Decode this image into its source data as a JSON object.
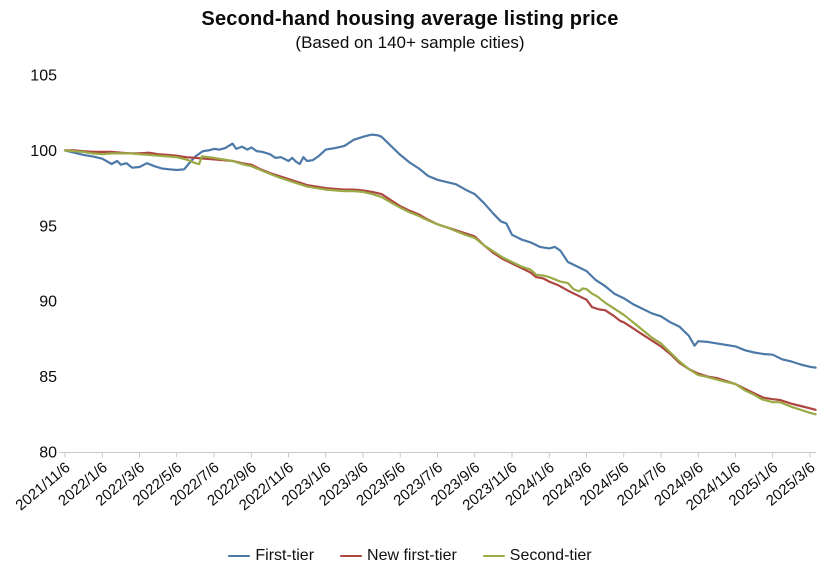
{
  "title": "Second-hand housing average listing price",
  "subtitle": "(Based on 140+ sample cities)",
  "colors": {
    "axis_line": "#c9c9c9",
    "tick_text": "#0b0b0b",
    "first_tier": "#4d79a8",
    "new_first_tier": "#ad4540",
    "second_tier": "#9aaa45"
  },
  "chart_data": {
    "type": "line",
    "title": "Second-hand housing average listing price",
    "subtitle": "(Based on 140+ sample cities)",
    "xlabel": "",
    "ylabel": "",
    "ylim": [
      80,
      105
    ],
    "y_ticks": [
      80,
      85,
      90,
      95,
      100,
      105
    ],
    "grid": false,
    "legend_position": "bottom",
    "x_tick_labels": [
      "2021/11/6",
      "2022/1/6",
      "2022/3/6",
      "2022/5/6",
      "2022/7/6",
      "2022/9/6",
      "2022/11/6",
      "2023/1/6",
      "2023/3/6",
      "2023/5/6",
      "2023/7/6",
      "2023/9/6",
      "2023/11/6",
      "2024/1/6",
      "2024/3/6",
      "2024/5/6",
      "2024/7/6",
      "2024/9/6",
      "2024/11/6",
      "2025/1/6",
      "2025/3/6"
    ],
    "x_months_per_tick": 2,
    "x_max_month": 40.3,
    "series": [
      {
        "name": "First-tier",
        "color": "#4d79a8",
        "points": [
          [
            0,
            100
          ],
          [
            0.5,
            99.85
          ],
          [
            1,
            99.7
          ],
          [
            1.5,
            99.6
          ],
          [
            2,
            99.45
          ],
          [
            2.5,
            99.1
          ],
          [
            2.8,
            99.3
          ],
          [
            3,
            99.05
          ],
          [
            3.3,
            99.15
          ],
          [
            3.6,
            98.85
          ],
          [
            4,
            98.9
          ],
          [
            4.4,
            99.15
          ],
          [
            4.8,
            98.95
          ],
          [
            5.2,
            98.8
          ],
          [
            5.6,
            98.75
          ],
          [
            6,
            98.7
          ],
          [
            6.4,
            98.75
          ],
          [
            6.7,
            99.2
          ],
          [
            7,
            99.6
          ],
          [
            7.4,
            99.95
          ],
          [
            7.7,
            100
          ],
          [
            8,
            100.1
          ],
          [
            8.3,
            100.05
          ],
          [
            8.6,
            100.15
          ],
          [
            9,
            100.45
          ],
          [
            9.2,
            100.1
          ],
          [
            9.5,
            100.25
          ],
          [
            9.8,
            100.05
          ],
          [
            10,
            100.2
          ],
          [
            10.3,
            99.95
          ],
          [
            10.6,
            99.9
          ],
          [
            11,
            99.75
          ],
          [
            11.3,
            99.5
          ],
          [
            11.6,
            99.55
          ],
          [
            12,
            99.3
          ],
          [
            12.2,
            99.5
          ],
          [
            12.4,
            99.25
          ],
          [
            12.6,
            99.1
          ],
          [
            12.8,
            99.55
          ],
          [
            13,
            99.3
          ],
          [
            13.3,
            99.35
          ],
          [
            13.6,
            99.6
          ],
          [
            14,
            100.05
          ],
          [
            14.5,
            100.15
          ],
          [
            15,
            100.3
          ],
          [
            15.5,
            100.7
          ],
          [
            16,
            100.9
          ],
          [
            16.3,
            101
          ],
          [
            16.5,
            101.05
          ],
          [
            16.8,
            101
          ],
          [
            17,
            100.9
          ],
          [
            17.5,
            100.3
          ],
          [
            18,
            99.7
          ],
          [
            18.5,
            99.2
          ],
          [
            19,
            98.8
          ],
          [
            19.5,
            98.3
          ],
          [
            20,
            98.05
          ],
          [
            20.5,
            97.9
          ],
          [
            21,
            97.75
          ],
          [
            21.5,
            97.4
          ],
          [
            22,
            97.1
          ],
          [
            22.5,
            96.5
          ],
          [
            23,
            95.8
          ],
          [
            23.4,
            95.3
          ],
          [
            23.7,
            95.15
          ],
          [
            24,
            94.4
          ],
          [
            24.5,
            94.1
          ],
          [
            25,
            93.9
          ],
          [
            25.5,
            93.6
          ],
          [
            26,
            93.5
          ],
          [
            26.3,
            93.6
          ],
          [
            26.6,
            93.35
          ],
          [
            27,
            92.6
          ],
          [
            27.5,
            92.3
          ],
          [
            28,
            92
          ],
          [
            28.5,
            91.4
          ],
          [
            29,
            91
          ],
          [
            29.5,
            90.5
          ],
          [
            30,
            90.2
          ],
          [
            30.5,
            89.8
          ],
          [
            31,
            89.5
          ],
          [
            31.5,
            89.2
          ],
          [
            32,
            89
          ],
          [
            32.5,
            88.6
          ],
          [
            33,
            88.3
          ],
          [
            33.5,
            87.7
          ],
          [
            33.8,
            87.05
          ],
          [
            34,
            87.35
          ],
          [
            34.5,
            87.3
          ],
          [
            35,
            87.2
          ],
          [
            35.5,
            87.1
          ],
          [
            36,
            87
          ],
          [
            36.5,
            86.75
          ],
          [
            37,
            86.6
          ],
          [
            37.5,
            86.5
          ],
          [
            38,
            86.45
          ],
          [
            38.5,
            86.15
          ],
          [
            39,
            86
          ],
          [
            39.5,
            85.8
          ],
          [
            40,
            85.65
          ],
          [
            40.3,
            85.6
          ]
        ]
      },
      {
        "name": "New first-tier",
        "color": "#ad4540",
        "points": [
          [
            0,
            100
          ],
          [
            0.5,
            100
          ],
          [
            1,
            99.95
          ],
          [
            1.5,
            99.9
          ],
          [
            2,
            99.9
          ],
          [
            2.5,
            99.9
          ],
          [
            3,
            99.85
          ],
          [
            3.5,
            99.8
          ],
          [
            4,
            99.8
          ],
          [
            4.5,
            99.85
          ],
          [
            5,
            99.75
          ],
          [
            5.5,
            99.7
          ],
          [
            6,
            99.65
          ],
          [
            6.5,
            99.55
          ],
          [
            7,
            99.5
          ],
          [
            7.5,
            99.45
          ],
          [
            8,
            99.4
          ],
          [
            8.5,
            99.35
          ],
          [
            9,
            99.3
          ],
          [
            9.5,
            99.15
          ],
          [
            10,
            99.05
          ],
          [
            10.5,
            98.75
          ],
          [
            11,
            98.5
          ],
          [
            11.5,
            98.3
          ],
          [
            12,
            98.1
          ],
          [
            12.5,
            97.9
          ],
          [
            13,
            97.7
          ],
          [
            13.5,
            97.6
          ],
          [
            14,
            97.5
          ],
          [
            14.5,
            97.45
          ],
          [
            15,
            97.4
          ],
          [
            15.5,
            97.4
          ],
          [
            16,
            97.35
          ],
          [
            16.5,
            97.25
          ],
          [
            17,
            97.1
          ],
          [
            17.5,
            96.7
          ],
          [
            18,
            96.3
          ],
          [
            18.5,
            96
          ],
          [
            19,
            95.75
          ],
          [
            19.5,
            95.4
          ],
          [
            20,
            95.1
          ],
          [
            20.5,
            94.9
          ],
          [
            21,
            94.7
          ],
          [
            21.5,
            94.5
          ],
          [
            22,
            94.3
          ],
          [
            22.5,
            93.7
          ],
          [
            23,
            93.2
          ],
          [
            23.5,
            92.8
          ],
          [
            24,
            92.5
          ],
          [
            24.5,
            92.2
          ],
          [
            25,
            91.9
          ],
          [
            25.3,
            91.6
          ],
          [
            25.7,
            91.5
          ],
          [
            26,
            91.3
          ],
          [
            26.5,
            91.05
          ],
          [
            27,
            90.7
          ],
          [
            27.5,
            90.4
          ],
          [
            28,
            90.1
          ],
          [
            28.3,
            89.6
          ],
          [
            28.7,
            89.45
          ],
          [
            29,
            89.4
          ],
          [
            29.5,
            89
          ],
          [
            29.8,
            88.7
          ],
          [
            30,
            88.6
          ],
          [
            30.5,
            88.2
          ],
          [
            31,
            87.8
          ],
          [
            31.5,
            87.4
          ],
          [
            32,
            87
          ],
          [
            32.5,
            86.5
          ],
          [
            33,
            85.9
          ],
          [
            33.5,
            85.5
          ],
          [
            34,
            85.2
          ],
          [
            34.5,
            85
          ],
          [
            35,
            84.9
          ],
          [
            35.5,
            84.7
          ],
          [
            36,
            84.5
          ],
          [
            36.5,
            84.2
          ],
          [
            37,
            83.9
          ],
          [
            37.5,
            83.6
          ],
          [
            38,
            83.5
          ],
          [
            38.4,
            83.45
          ],
          [
            39,
            83.2
          ],
          [
            39.5,
            83.05
          ],
          [
            40,
            82.9
          ],
          [
            40.3,
            82.8
          ]
        ]
      },
      {
        "name": "Second-tier",
        "color": "#9aaa45",
        "points": [
          [
            0,
            100
          ],
          [
            0.5,
            99.95
          ],
          [
            1,
            99.9
          ],
          [
            1.5,
            99.8
          ],
          [
            2,
            99.75
          ],
          [
            2.5,
            99.8
          ],
          [
            3,
            99.8
          ],
          [
            3.5,
            99.8
          ],
          [
            4,
            99.75
          ],
          [
            4.5,
            99.7
          ],
          [
            5,
            99.65
          ],
          [
            5.5,
            99.6
          ],
          [
            6,
            99.55
          ],
          [
            6.5,
            99.4
          ],
          [
            7,
            99.15
          ],
          [
            7.2,
            99.1
          ],
          [
            7.35,
            99.6
          ],
          [
            7.7,
            99.55
          ],
          [
            8,
            99.5
          ],
          [
            8.5,
            99.4
          ],
          [
            9,
            99.3
          ],
          [
            9.5,
            99.1
          ],
          [
            10,
            98.95
          ],
          [
            10.5,
            98.7
          ],
          [
            11,
            98.45
          ],
          [
            11.5,
            98.2
          ],
          [
            12,
            98
          ],
          [
            12.5,
            97.8
          ],
          [
            13,
            97.6
          ],
          [
            13.5,
            97.5
          ],
          [
            14,
            97.4
          ],
          [
            14.5,
            97.35
          ],
          [
            15,
            97.3
          ],
          [
            15.5,
            97.3
          ],
          [
            16,
            97.25
          ],
          [
            16.5,
            97.1
          ],
          [
            17,
            96.9
          ],
          [
            17.5,
            96.55
          ],
          [
            18,
            96.2
          ],
          [
            18.5,
            95.9
          ],
          [
            19,
            95.65
          ],
          [
            19.5,
            95.35
          ],
          [
            20,
            95.1
          ],
          [
            20.5,
            94.9
          ],
          [
            21,
            94.65
          ],
          [
            21.5,
            94.4
          ],
          [
            22,
            94.2
          ],
          [
            22.5,
            93.7
          ],
          [
            23,
            93.3
          ],
          [
            23.5,
            92.9
          ],
          [
            24,
            92.6
          ],
          [
            24.5,
            92.3
          ],
          [
            25,
            92.1
          ],
          [
            25.3,
            91.75
          ],
          [
            25.7,
            91.7
          ],
          [
            26,
            91.6
          ],
          [
            26.3,
            91.45
          ],
          [
            26.6,
            91.3
          ],
          [
            27,
            91.2
          ],
          [
            27.3,
            90.8
          ],
          [
            27.6,
            90.65
          ],
          [
            27.8,
            90.85
          ],
          [
            28,
            90.8
          ],
          [
            28.3,
            90.5
          ],
          [
            28.6,
            90.3
          ],
          [
            29,
            89.9
          ],
          [
            29.5,
            89.5
          ],
          [
            30,
            89.1
          ],
          [
            30.5,
            88.6
          ],
          [
            31,
            88.1
          ],
          [
            31.5,
            87.6
          ],
          [
            32,
            87.2
          ],
          [
            32.5,
            86.6
          ],
          [
            33,
            86
          ],
          [
            33.5,
            85.5
          ],
          [
            34,
            85.1
          ],
          [
            34.4,
            85
          ],
          [
            35,
            84.8
          ],
          [
            35.5,
            84.65
          ],
          [
            36,
            84.5
          ],
          [
            36.5,
            84.1
          ],
          [
            37,
            83.8
          ],
          [
            37.4,
            83.5
          ],
          [
            38,
            83.3
          ],
          [
            38.4,
            83.3
          ],
          [
            39,
            83
          ],
          [
            39.5,
            82.8
          ],
          [
            40,
            82.6
          ],
          [
            40.3,
            82.5
          ]
        ]
      }
    ]
  }
}
